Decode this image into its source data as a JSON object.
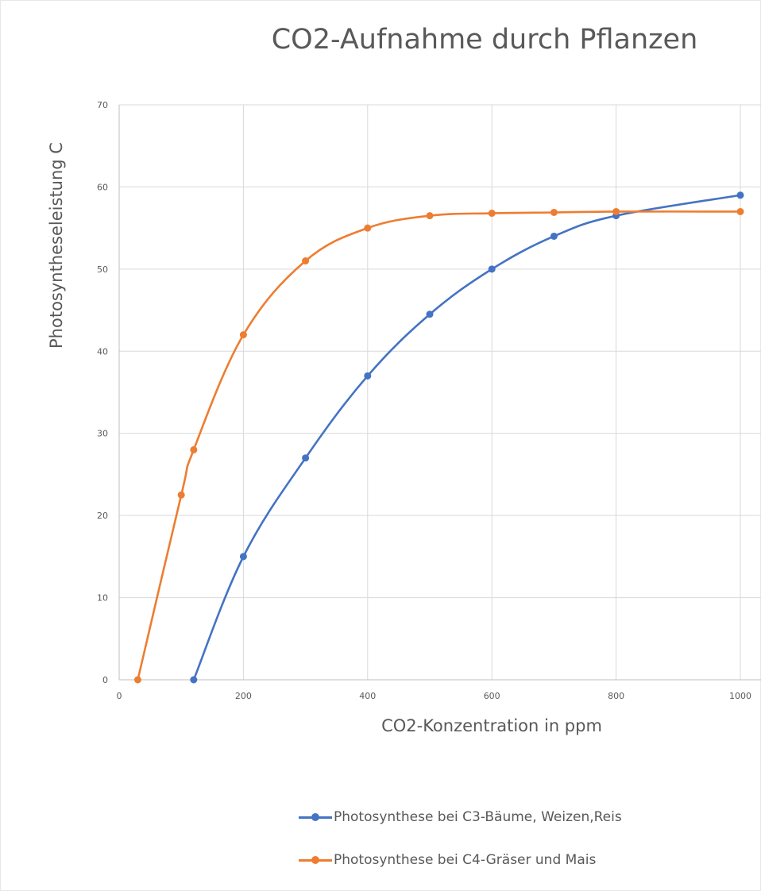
{
  "chart_data": {
    "type": "line",
    "title": "CO2-Aufnahme durch Pflanzen",
    "xlabel": "CO2-Konzentration in ppm",
    "ylabel": "Photosyntheseleistung  C",
    "xlim": [
      0,
      1000
    ],
    "ylim": [
      0,
      70
    ],
    "xticks": [
      0,
      200,
      400,
      600,
      800,
      1000
    ],
    "yticks": [
      0,
      10,
      20,
      30,
      40,
      50,
      60,
      70
    ],
    "grid": true,
    "legend_position": "bottom",
    "series": [
      {
        "name": "Photosynthese bei C3-Bäume, Weizen,Reis",
        "color": "#4472C4",
        "x": [
          120,
          200,
          300,
          400,
          500,
          600,
          700,
          800,
          1000
        ],
        "y": [
          0,
          15,
          27,
          37,
          44.5,
          50,
          54,
          56.5,
          59
        ]
      },
      {
        "name": "Photosynthese bei C4-Gräser und Mais",
        "color": "#ED7D31",
        "x": [
          30,
          100,
          120,
          200,
          300,
          400,
          500,
          600,
          700,
          800,
          1000
        ],
        "y": [
          0,
          22.5,
          28,
          42,
          51,
          55,
          56.5,
          56.8,
          56.9,
          57,
          57
        ]
      }
    ]
  }
}
